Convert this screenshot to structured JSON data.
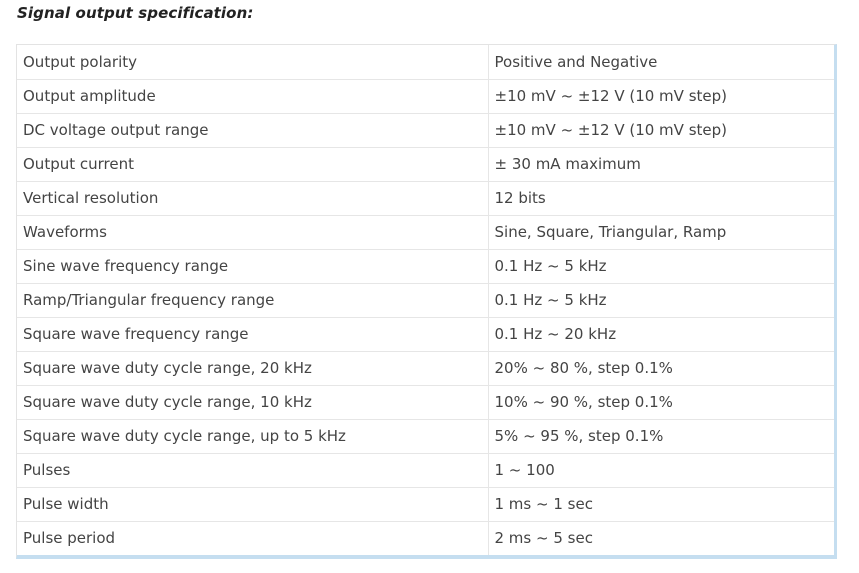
{
  "section_title": "Signal output specification:",
  "spec_rows": [
    {
      "label": "Output polarity",
      "value": "Positive and Negative"
    },
    {
      "label": "Output amplitude",
      "value": "±10 mV ~ ±12 V (10 mV step)"
    },
    {
      "label": "DC voltage output range",
      "value": "±10 mV ~ ±12 V (10 mV step)"
    },
    {
      "label": "Output current",
      "value": "± 30 mA maximum"
    },
    {
      "label": "Vertical resolution",
      "value": "12 bits"
    },
    {
      "label": "Waveforms",
      "value": "Sine, Square, Triangular, Ramp"
    },
    {
      "label": "Sine wave frequency range",
      "value": "0.1 Hz ~ 5 kHz"
    },
    {
      "label": "Ramp/Triangular frequency range",
      "value": "0.1 Hz ~ 5 kHz"
    },
    {
      "label": "Square wave frequency range",
      "value": "0.1 Hz ~ 20 kHz"
    },
    {
      "label": "Square wave duty cycle range, 20 kHz",
      "value": "20% ~ 80 %, step 0.1%"
    },
    {
      "label": "Square wave duty cycle range, 10 kHz",
      "value": "10% ~ 90 %, step 0.1%"
    },
    {
      "label": "Square wave duty cycle range, up to 5 kHz",
      "value": "5% ~ 95 %, step 0.1%"
    },
    {
      "label": "Pulses",
      "value": "1 ~ 100"
    },
    {
      "label": "Pulse width",
      "value": "1 ms ~ 1 sec"
    },
    {
      "label": "Pulse period",
      "value": "2 ms ~ 5 sec"
    }
  ]
}
